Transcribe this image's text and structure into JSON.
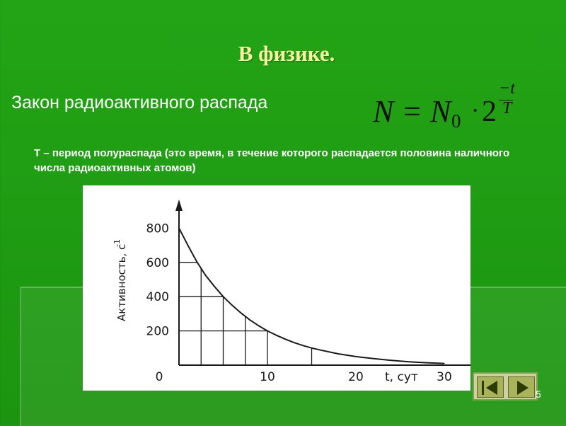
{
  "slide": {
    "title": "В физике.",
    "subtitle": "Закон радиоактивного распада",
    "formula": {
      "main": "N = N",
      "subscript": "0",
      "dot": "·",
      "base": "2",
      "exp_numerator": "−t",
      "exp_denominator": "T"
    },
    "definition": "Т – период полураспада (это время, в течение которого распадается половина наличного числа радиоактивных атомов)",
    "page_number": "5"
  },
  "colors": {
    "background": "#1f9a12",
    "title": "#f7f3a0",
    "text": "#ffffff",
    "chart_bg": "#ffffff",
    "chart_ink": "#1a1a1a"
  },
  "nav": {
    "prev_icon": "triangle-left-icon",
    "next_icon": "triangle-right-icon"
  },
  "chart_data": {
    "type": "line",
    "title": "",
    "xlabel": "t, сут",
    "ylabel": "Активность, с",
    "ylabel_superscript": "-1",
    "x_ticks": [
      0,
      10,
      20,
      30
    ],
    "x_tick_labels": [
      "0",
      "10",
      "20",
      "30"
    ],
    "y_ticks": [
      200,
      400,
      600,
      800
    ],
    "y_tick_labels": [
      "200",
      "400",
      "600",
      "800"
    ],
    "xlim": [
      0,
      33
    ],
    "ylim": [
      0,
      900
    ],
    "grid": "under-curve",
    "grid_x": [
      2.5,
      5,
      7.5,
      10,
      15
    ],
    "series": [
      {
        "x": [
          0,
          1,
          2,
          3,
          4,
          5,
          6,
          7,
          8,
          9,
          10,
          11,
          12,
          13,
          14,
          15,
          16,
          18,
          20,
          22,
          24,
          26,
          28,
          30
        ],
        "y": [
          800,
          700,
          605,
          525,
          460,
          400,
          350,
          305,
          265,
          230,
          200,
          175,
          152,
          132,
          115,
          100,
          88,
          66,
          50,
          38,
          28,
          20,
          14,
          10
        ]
      }
    ]
  }
}
